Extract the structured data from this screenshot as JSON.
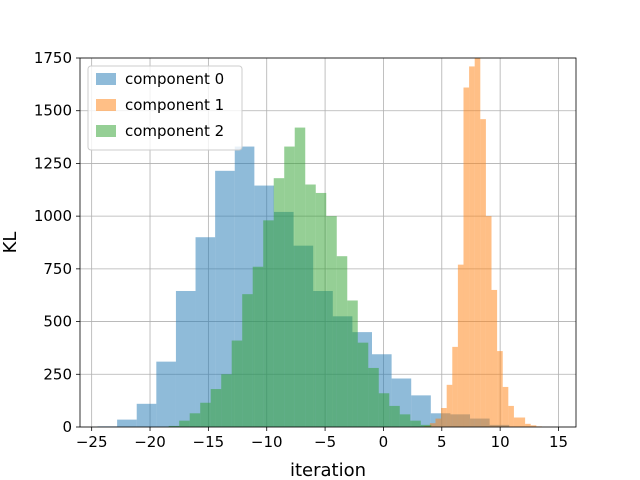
{
  "chart_data": {
    "type": "bar",
    "subtype": "overlaid-histogram",
    "title": "",
    "xlabel": "iteration",
    "ylabel": "KL",
    "xlim": [
      -26,
      16.5
    ],
    "ylim": [
      0,
      1750
    ],
    "xticks": [
      -25,
      -20,
      -15,
      -10,
      -5,
      0,
      5,
      10,
      15
    ],
    "yticks": [
      0,
      250,
      500,
      750,
      1000,
      1250,
      1500,
      1750
    ],
    "grid": true,
    "legend_position": "top-left",
    "series": [
      {
        "name": "component 0",
        "color": "#1f77b4",
        "alpha": 0.5,
        "bin_start": -24.5,
        "bin_width": 1.68,
        "counts": [
          3,
          35,
          110,
          310,
          645,
          900,
          1215,
          1330,
          1145,
          1020,
          860,
          645,
          525,
          450,
          345,
          230,
          150,
          65,
          60,
          40,
          10
        ]
      },
      {
        "name": "component 1",
        "color": "#ff7f0e",
        "alpha": 0.5,
        "bin_start": 3.5,
        "bin_width": 0.48,
        "counts": [
          5,
          18,
          40,
          90,
          200,
          380,
          770,
          1610,
          1710,
          1750,
          1460,
          1000,
          650,
          360,
          190,
          100,
          45,
          45,
          15,
          8,
          3
        ]
      },
      {
        "name": "component 2",
        "color": "#2ca02c",
        "alpha": 0.5,
        "bin_start": -18.4,
        "bin_width": 0.9,
        "counts": [
          5,
          30,
          65,
          115,
          180,
          250,
          410,
          630,
          760,
          980,
          1180,
          1330,
          1420,
          1150,
          1110,
          1000,
          810,
          600,
          400,
          280,
          160,
          100,
          60,
          30,
          10
        ]
      }
    ]
  }
}
